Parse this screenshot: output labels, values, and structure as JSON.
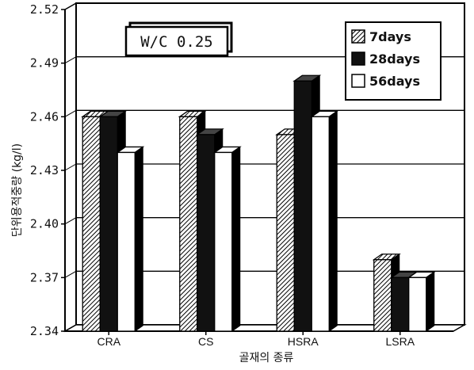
{
  "chart_data": {
    "type": "bar",
    "title": "",
    "annotation": "W/C 0.25",
    "xlabel": "골재의 종류",
    "ylabel": "단위용적중량 (kg/l)",
    "categories": [
      "CRA",
      "CS",
      "HSRA",
      "LSRA"
    ],
    "series": [
      {
        "name": "7days",
        "values": [
          2.46,
          2.46,
          2.45,
          2.38
        ]
      },
      {
        "name": "28days",
        "values": [
          2.46,
          2.45,
          2.48,
          2.37
        ]
      },
      {
        "name": "56days",
        "values": [
          2.44,
          2.44,
          2.46,
          2.37
        ]
      }
    ],
    "ylim": [
      2.34,
      2.52
    ],
    "yticks": [
      "2.34",
      "2.37",
      "2.40",
      "2.43",
      "2.46",
      "2.49",
      "2.52"
    ],
    "grid": true,
    "legend_position": "top-right",
    "series_styles": [
      "hatched",
      "#111111",
      "#ffffff"
    ]
  }
}
